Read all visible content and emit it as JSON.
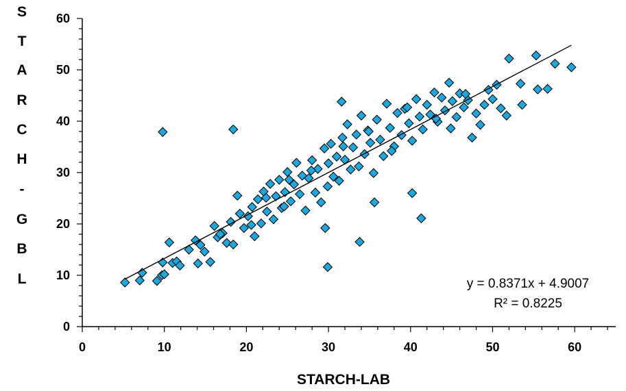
{
  "chart_data": {
    "type": "scatter",
    "title": "",
    "xlabel": "STARCH-LAB",
    "ylabel": "STARCH-GBL",
    "ylabel_chars": [
      "S",
      "T",
      "A",
      "R",
      "C",
      "H",
      "-",
      "G",
      "B",
      "L"
    ],
    "xlim": [
      0,
      65
    ],
    "ylim": [
      0,
      60
    ],
    "xticks": [
      0,
      10,
      20,
      30,
      40,
      50,
      60
    ],
    "yticks": [
      0,
      10,
      20,
      30,
      40,
      50,
      60
    ],
    "grid": false,
    "marker": "diamond",
    "marker_color": "#1CA7DF",
    "marker_edge_color": "#000000",
    "trendline": {
      "slope": 0.8371,
      "intercept": 4.9007,
      "x_range": [
        5.2,
        59.6
      ],
      "color": "#000000"
    },
    "equation_text": "y = 0.8371x + 4.9007",
    "r2_text": "R² = 0.8225",
    "series": [
      {
        "x": [
          5.2,
          7.0,
          7.3,
          9.1,
          9.7,
          9.8,
          10.0,
          10.6,
          11.0,
          11.5,
          11.9,
          13.0,
          13.8,
          14.1,
          14.4,
          14.9,
          15.6,
          16.1,
          16.5,
          17.1,
          17.6,
          18.1,
          18.4,
          18.9,
          19.2,
          19.7,
          20.2,
          20.7,
          21.0,
          21.4,
          21.8,
          22.1,
          22.5,
          22.9,
          23.3,
          23.6,
          24.0,
          24.3,
          24.7,
          25.0,
          25.4,
          25.8,
          26.1,
          26.5,
          26.8,
          27.2,
          27.6,
          28.0,
          28.4,
          28.7,
          29.1,
          29.5,
          29.9,
          30.0,
          30.3,
          30.6,
          31.0,
          31.3,
          31.7,
          32.0,
          32.3,
          32.7,
          33.0,
          33.4,
          33.7,
          34.0,
          34.4,
          34.8,
          35.1,
          35.5,
          35.9,
          36.3,
          36.7,
          37.1,
          37.5,
          38.0,
          38.4,
          38.9,
          39.3,
          39.8,
          40.2,
          40.7,
          41.1,
          41.5,
          42.0,
          42.4,
          42.9,
          43.3,
          43.8,
          44.2,
          44.7,
          45.1,
          45.6,
          46.0,
          46.5,
          47.0,
          47.5,
          48.0,
          48.5,
          49.0,
          49.5,
          50.0,
          50.5,
          51.0,
          51.7,
          52.0,
          53.4,
          53.6,
          55.3,
          55.5,
          56.7,
          57.6,
          59.6,
          9.8,
          18.4,
          29.9,
          33.8,
          40.2,
          41.3,
          29.6,
          22.4,
          25.2,
          27.9,
          31.8,
          34.9,
          37.7,
          39.6,
          43.1,
          44.9,
          46.7,
          24.6,
          20.6,
          16.8,
          31.6,
          35.6
        ],
        "y": [
          8.6,
          9.0,
          10.5,
          8.9,
          10.0,
          12.5,
          10.2,
          16.4,
          12.4,
          12.7,
          11.9,
          15.0,
          16.8,
          12.3,
          15.9,
          14.6,
          12.6,
          19.6,
          17.4,
          18.2,
          16.3,
          20.4,
          16.0,
          25.5,
          22.0,
          19.2,
          21.5,
          23.3,
          17.6,
          24.8,
          20.1,
          26.3,
          22.4,
          27.8,
          20.9,
          25.4,
          28.6,
          23.1,
          26.2,
          30.1,
          24.4,
          27.7,
          31.9,
          25.8,
          29.4,
          22.6,
          28.9,
          32.4,
          26.1,
          30.7,
          24.2,
          34.7,
          27.3,
          31.8,
          35.6,
          29.2,
          33.1,
          28.4,
          36.8,
          32.5,
          39.4,
          30.6,
          34.9,
          37.4,
          31.2,
          41.1,
          33.6,
          38.2,
          35.8,
          29.9,
          40.3,
          36.4,
          33.2,
          43.4,
          38.7,
          35.1,
          41.6,
          37.3,
          42.4,
          39.6,
          36.2,
          44.3,
          40.9,
          38.4,
          43.2,
          41.3,
          45.6,
          39.9,
          44.6,
          42.1,
          47.5,
          43.9,
          40.8,
          45.4,
          42.7,
          44.1,
          36.8,
          41.5,
          39.3,
          43.2,
          46.1,
          44.3,
          47.1,
          42.5,
          41.1,
          52.2,
          47.3,
          43.2,
          52.8,
          46.2,
          46.3,
          51.2,
          50.5,
          37.9,
          38.4,
          11.6,
          16.5,
          26.0,
          21.1,
          19.2,
          25.1,
          28.6,
          30.4,
          35.1,
          38.0,
          34.2,
          42.7,
          40.5,
          38.6,
          45.3,
          23.4,
          19.8,
          18.0,
          43.8,
          24.2
        ]
      }
    ]
  }
}
